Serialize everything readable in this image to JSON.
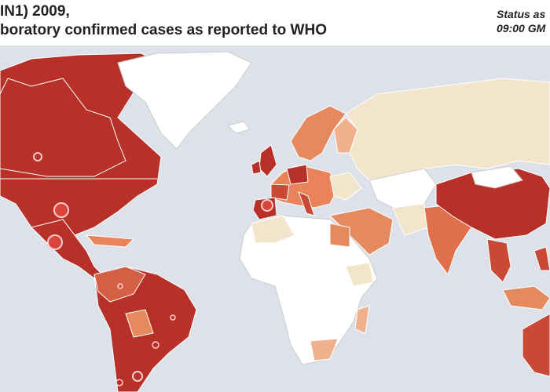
{
  "header": {
    "title_line1": "IN1) 2009,",
    "title_line2": "boratory confirmed cases as reported to WHO",
    "status_line1": "Status as",
    "status_line2": "09:00 GM"
  }
}
